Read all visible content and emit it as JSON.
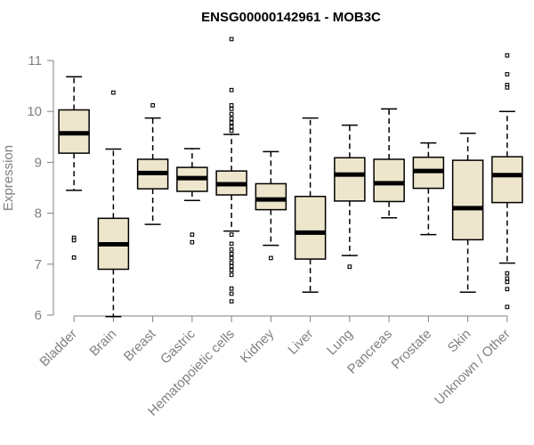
{
  "chart_data": {
    "type": "boxplot",
    "title": "ENSG00000142961 - MOB3C",
    "xlabel": "",
    "ylabel": "Expression",
    "ylim": [
      6,
      11
    ],
    "yticks": [
      6,
      7,
      8,
      9,
      10,
      11
    ],
    "categories": [
      "Bladder",
      "Brain",
      "Breast",
      "Gastric",
      "Hematopoietic cells",
      "Kidney",
      "Liver",
      "Lung",
      "Pancreas",
      "Prostate",
      "Skin",
      "Unknown / Other"
    ],
    "boxes": [
      {
        "name": "Bladder",
        "min": 8.45,
        "q1": 9.18,
        "median": 9.57,
        "q3": 10.03,
        "max": 10.68,
        "outliers": [
          7.52,
          7.47,
          7.13
        ]
      },
      {
        "name": "Brain",
        "min": 5.97,
        "q1": 6.9,
        "median": 7.39,
        "q3": 7.9,
        "max": 9.26,
        "outliers": [
          10.37
        ]
      },
      {
        "name": "Breast",
        "min": 7.78,
        "q1": 8.48,
        "median": 8.79,
        "q3": 9.06,
        "max": 9.87,
        "outliers": [
          10.12
        ]
      },
      {
        "name": "Gastric",
        "min": 8.25,
        "q1": 8.43,
        "median": 8.69,
        "q3": 8.9,
        "max": 9.27,
        "outliers": [
          7.58,
          7.43
        ]
      },
      {
        "name": "Hematopoietic cells",
        "min": 7.65,
        "q1": 8.36,
        "median": 8.57,
        "q3": 8.83,
        "max": 9.55,
        "outliers": [
          11.42,
          10.42,
          10.12,
          10.05,
          9.95,
          9.86,
          9.78,
          9.7,
          9.62,
          7.58,
          7.4,
          7.29,
          7.2,
          7.12,
          7.03,
          6.96,
          6.88,
          6.79,
          6.52,
          6.42,
          6.27
        ]
      },
      {
        "name": "Kidney",
        "min": 7.37,
        "q1": 8.07,
        "median": 8.27,
        "q3": 8.58,
        "max": 9.21,
        "outliers": [
          7.12
        ]
      },
      {
        "name": "Liver",
        "min": 6.45,
        "q1": 7.1,
        "median": 7.62,
        "q3": 8.33,
        "max": 9.87,
        "outliers": []
      },
      {
        "name": "Lung",
        "min": 7.17,
        "q1": 8.24,
        "median": 8.76,
        "q3": 9.09,
        "max": 9.73,
        "outliers": [
          6.95
        ]
      },
      {
        "name": "Pancreas",
        "min": 7.91,
        "q1": 8.23,
        "median": 8.59,
        "q3": 9.06,
        "max": 10.05,
        "outliers": []
      },
      {
        "name": "Prostate",
        "min": 7.58,
        "q1": 8.49,
        "median": 8.83,
        "q3": 9.1,
        "max": 9.38,
        "outliers": []
      },
      {
        "name": "Skin",
        "min": 6.45,
        "q1": 7.48,
        "median": 8.1,
        "q3": 9.04,
        "max": 9.57,
        "outliers": []
      },
      {
        "name": "Unknown / Other",
        "min": 7.02,
        "q1": 8.21,
        "median": 8.75,
        "q3": 9.11,
        "max": 10.0,
        "outliers": [
          11.1,
          10.73,
          10.52,
          10.47,
          6.82,
          6.72,
          6.65,
          6.51,
          6.16
        ]
      }
    ],
    "colors": {
      "box_fill": "#eee6cc",
      "box_stroke": "#000000",
      "axis": "#808080",
      "tick_label": "#808080",
      "title": "#000000"
    }
  }
}
